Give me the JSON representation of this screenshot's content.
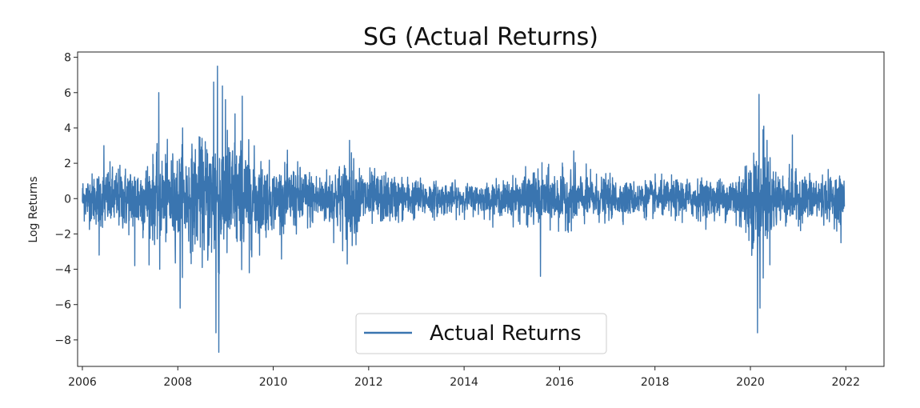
{
  "chart_data": {
    "type": "line",
    "title": "SG (Actual Returns)",
    "xlabel": "",
    "ylabel": "Log Returns",
    "xlim": [
      2005.9,
      2022.8
    ],
    "ylim": [
      -9.5,
      8.3
    ],
    "x_ticks": [
      2006,
      2008,
      2010,
      2012,
      2014,
      2016,
      2018,
      2020,
      2022
    ],
    "x_tick_labels": [
      "2006",
      "2008",
      "2010",
      "2012",
      "2014",
      "2016",
      "2018",
      "2020",
      "2022"
    ],
    "y_ticks": [
      8,
      6,
      4,
      2,
      0,
      -2,
      -4,
      -6,
      -8
    ],
    "y_tick_labels": [
      "8",
      "6",
      "4",
      "2",
      "0",
      "−2",
      "−4",
      "−6",
      "−8"
    ],
    "grid": false,
    "legend_position": "lower-center",
    "series": [
      {
        "name": "Actual Returns",
        "color": "#3a75b0",
        "x_range": [
          2006.0,
          2021.97
        ],
        "volatility_profile": [
          [
            2006.0,
            0.8
          ],
          [
            2006.5,
            1.1
          ],
          [
            2007.0,
            1.2
          ],
          [
            2007.5,
            1.5
          ],
          [
            2008.0,
            1.7
          ],
          [
            2008.5,
            2.0
          ],
          [
            2008.8,
            2.8
          ],
          [
            2009.0,
            2.5
          ],
          [
            2009.5,
            1.8
          ],
          [
            2010.0,
            1.1
          ],
          [
            2010.5,
            1.2
          ],
          [
            2011.0,
            0.9
          ],
          [
            2011.6,
            1.5
          ],
          [
            2012.0,
            1.0
          ],
          [
            2013.0,
            0.7
          ],
          [
            2014.0,
            0.5
          ],
          [
            2014.8,
            0.6
          ],
          [
            2015.5,
            1.0
          ],
          [
            2016.0,
            1.0
          ],
          [
            2016.5,
            0.9
          ],
          [
            2017.5,
            0.6
          ],
          [
            2018.5,
            0.7
          ],
          [
            2019.5,
            0.7
          ],
          [
            2020.2,
            2.0
          ],
          [
            2020.6,
            1.0
          ],
          [
            2021.0,
            0.9
          ],
          [
            2021.97,
            0.8
          ]
        ],
        "extremes": [
          [
            2006.35,
            -3.2
          ],
          [
            2006.45,
            3.0
          ],
          [
            2007.1,
            -3.8
          ],
          [
            2007.6,
            6.0
          ],
          [
            2007.62,
            -4.0
          ],
          [
            2008.05,
            -6.2
          ],
          [
            2008.1,
            4.0
          ],
          [
            2008.45,
            3.5
          ],
          [
            2008.75,
            6.6
          ],
          [
            2008.8,
            -7.6
          ],
          [
            2008.83,
            7.5
          ],
          [
            2008.86,
            -8.7
          ],
          [
            2009.0,
            5.6
          ],
          [
            2009.2,
            4.8
          ],
          [
            2009.35,
            5.8
          ],
          [
            2009.5,
            -4.2
          ],
          [
            2011.6,
            3.3
          ],
          [
            2011.55,
            -3.7
          ],
          [
            2015.6,
            -4.4
          ],
          [
            2016.3,
            2.7
          ],
          [
            2020.18,
            5.9
          ],
          [
            2020.15,
            -7.6
          ],
          [
            2020.2,
            -6.2
          ],
          [
            2020.27,
            -4.5
          ],
          [
            2020.28,
            4.1
          ],
          [
            2020.35,
            3.3
          ],
          [
            2020.88,
            3.6
          ],
          [
            2021.9,
            -2.5
          ]
        ]
      }
    ]
  }
}
